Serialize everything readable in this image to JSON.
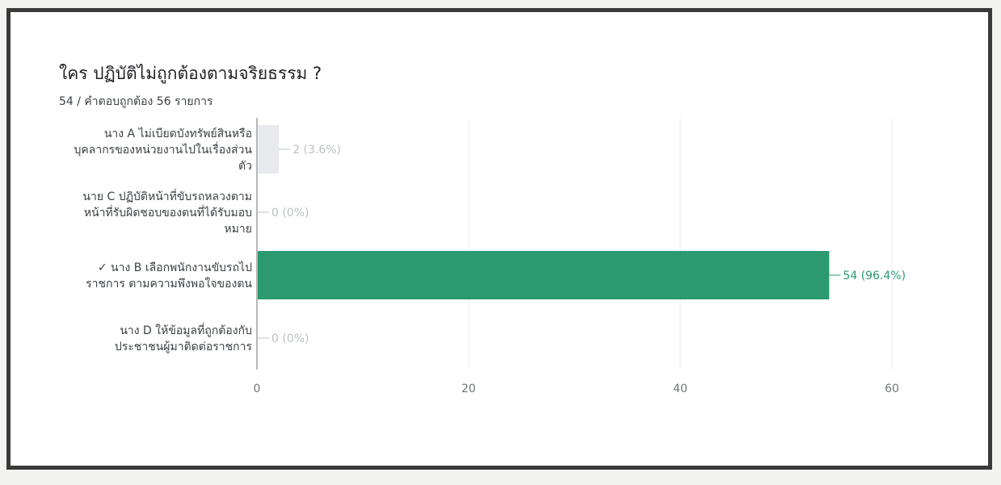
{
  "question": {
    "title": "ใคร ปฏิบัติไม่ถูกต้องตามจริยธรรม ?",
    "score_summary": "54 / คำตอบถูกต้อง 56 รายการ"
  },
  "colors": {
    "correct_bar": "#2b9a70",
    "other_bar": "#e8eaed",
    "label_correct": "#2b9a70",
    "label_other": "#bdc1c6",
    "axis": "#8a8a8a",
    "gridline": "#ececec"
  },
  "chart_data": {
    "type": "bar",
    "orientation": "horizontal",
    "categories": [
      [
        "นาง A ไม่เบียดบังทรัพย์สินหรือ",
        "บุคลากรของหน่วยงานไปในเรื่องส่วน",
        "ตัว"
      ],
      [
        "นาย C ปฏิบัติหน้าที่ขับรถหลวงตาม",
        "หน้าที่รับผิดชอบของตนที่ได้รับมอบ",
        "หมาย"
      ],
      [
        "✓ นาง B เลือกพนักงานขับรถไป",
        "ราชการ ตามความพึงพอใจของตน"
      ],
      [
        "นาง D ให้ข้อมูลที่ถูกต้องกับ",
        "ประชาชนผู้มาติดต่อราชการ"
      ]
    ],
    "values": [
      2,
      0,
      54,
      0
    ],
    "data_labels": [
      "2 (3.6%)",
      "0 (0%)",
      "54 (96.4%)",
      "0 (0%)"
    ],
    "correct": [
      false,
      false,
      true,
      false
    ],
    "xlim": [
      0,
      60
    ],
    "xticks": [
      0,
      20,
      40,
      60
    ],
    "grid": true
  }
}
